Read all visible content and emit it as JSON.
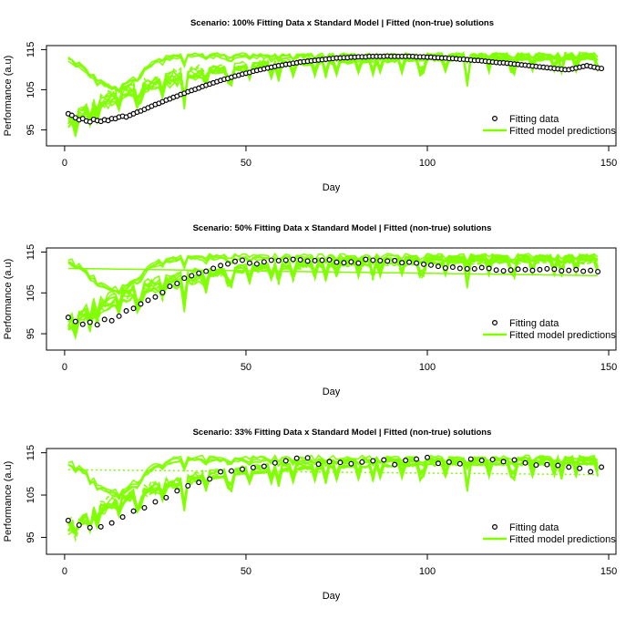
{
  "colors": {
    "model": "#7fff00",
    "points": "#000000",
    "axis": "#000000"
  },
  "chart_data": [
    {
      "type": "line",
      "title": "Scenario: 100% Fitting Data x Standard Model | Fitted (non-true) solutions",
      "xlabel": "Day",
      "ylabel": "Performance (a.u)",
      "xlim": [
        -5,
        152
      ],
      "ylim": [
        91,
        116
      ],
      "xticks": [
        0,
        50,
        100,
        150
      ],
      "yticks": [
        95,
        105,
        115
      ],
      "legend": {
        "placement": "bottom-right",
        "entries": [
          "Fitting data",
          "Fitted model predictions"
        ]
      },
      "sampling_step": 1,
      "fitting_data_y": [
        99,
        98.6,
        98,
        97.5,
        97.8,
        97.2,
        97,
        97.6,
        97.3,
        97.1,
        97.5,
        97.3,
        97.8,
        97.8,
        98.2,
        98.4,
        98.2,
        98.6,
        99,
        99.4,
        99.7,
        100.1,
        100.5,
        100.9,
        101.3,
        101.6,
        102.0,
        102.4,
        102.7,
        103.1,
        103.4,
        103.8,
        104.1,
        104.5,
        104.8,
        105.1,
        105.4,
        105.8,
        106.1,
        106.4,
        106.7,
        107.0,
        107.3,
        107.6,
        107.8,
        108.1,
        108.4,
        108.6,
        108.9,
        109.1,
        109.3,
        109.6,
        109.8,
        110.0,
        110.2,
        110.4,
        110.6,
        110.8,
        111.0,
        111.1,
        111.3,
        111.4,
        111.6,
        111.7,
        111.9,
        112.0,
        112.1,
        112.2,
        112.3,
        112.4,
        112.5,
        112.6,
        112.7,
        112.8,
        112.9,
        112.9,
        113.0,
        113.0,
        113.1,
        113.1,
        113.2,
        113.2,
        113.2,
        113.3,
        113.3,
        113.3,
        113.3,
        113.3,
        113.4,
        113.3,
        113.3,
        113.3,
        113.3,
        113.3,
        113.3,
        113.3,
        113.2,
        113.2,
        113.2,
        113.1,
        113.1,
        113.0,
        113.0,
        112.9,
        112.9,
        112.8,
        112.8,
        112.7,
        112.6,
        112.6,
        112.5,
        112.4,
        112.3,
        112.3,
        112.2,
        112.1,
        112.0,
        111.9,
        111.8,
        111.7,
        111.7,
        111.6,
        111.5,
        111.4,
        111.3,
        111.2,
        111.1,
        111.0,
        110.9,
        110.8,
        110.7,
        110.6,
        110.5,
        110.4,
        110.3,
        110.2,
        110.1,
        110.0,
        110.0,
        110.2,
        110.4,
        110.6,
        110.8,
        111.0,
        110.8,
        110.6,
        110.4,
        110.3
      ]
    },
    {
      "type": "line",
      "title": "Scenario: 50% Fitting Data x Standard Model | Fitted (non-true) solutions",
      "xlabel": "Day",
      "ylabel": "Performance (a.u)",
      "xlim": [
        -5,
        152
      ],
      "ylim": [
        91,
        116
      ],
      "xticks": [
        0,
        50,
        100,
        150
      ],
      "yticks": [
        95,
        105,
        115
      ],
      "legend": {
        "placement": "bottom-right",
        "entries": [
          "Fitting data",
          "Fitted model predictions"
        ]
      },
      "sampling_step": 2,
      "fitting_data_y": [
        99,
        98,
        97.3,
        97.8,
        97.2,
        98.5,
        98.2,
        99.3,
        100.6,
        101.2,
        102.3,
        103.2,
        104,
        105.1,
        106.6,
        107.3,
        108.6,
        109.2,
        109.8,
        110.3,
        111,
        111.7,
        112.1,
        112.7,
        113,
        112.3,
        112.1,
        112.6,
        113,
        112.9,
        113,
        113.2,
        113.1,
        112.8,
        112.9,
        113,
        113.1,
        112.5,
        112.4,
        112.6,
        112.3,
        113.2,
        113,
        112.9,
        112.8,
        112.9,
        112.4,
        112.5,
        112.3,
        112,
        111.8,
        111.5,
        111.1,
        111.3,
        111,
        110.9,
        110.9,
        111.2,
        111,
        110.6,
        110.4,
        110.6,
        110.8,
        110.7,
        110.5,
        110.7,
        110.9,
        110.8,
        110.4,
        110.5,
        110.7,
        110.3,
        110.5,
        110.2
      ]
    },
    {
      "type": "line",
      "title": "Scenario: 33% Fitting Data x Standard Model | Fitted (non-true) solutions",
      "xlabel": "Day",
      "ylabel": "Performance (a.u)",
      "xlim": [
        -5,
        152
      ],
      "ylim": [
        91,
        116
      ],
      "xticks": [
        0,
        50,
        100,
        150
      ],
      "yticks": [
        95,
        105,
        115
      ],
      "legend": {
        "placement": "bottom-right",
        "entries": [
          "Fitting data",
          "Fitted model predictions"
        ]
      },
      "sampling_step": 3,
      "fitting_data_y": [
        99,
        97.9,
        97.3,
        97.5,
        98.4,
        99.8,
        101.2,
        102,
        103.4,
        104.4,
        106,
        107.2,
        108,
        108.8,
        110.5,
        110.7,
        111.1,
        111.5,
        111.8,
        112.6,
        113.1,
        113.7,
        113.8,
        112.3,
        112.9,
        112.7,
        112.4,
        112.8,
        113.1,
        113.3,
        112.2,
        113.2,
        113.5,
        113.9,
        112.5,
        112.8,
        112.4,
        113.5,
        113.2,
        113.4,
        112.9,
        113.3,
        112.6,
        112.1,
        112.2,
        112,
        111.6,
        111.3,
        110.5,
        111.6
      ]
    }
  ]
}
